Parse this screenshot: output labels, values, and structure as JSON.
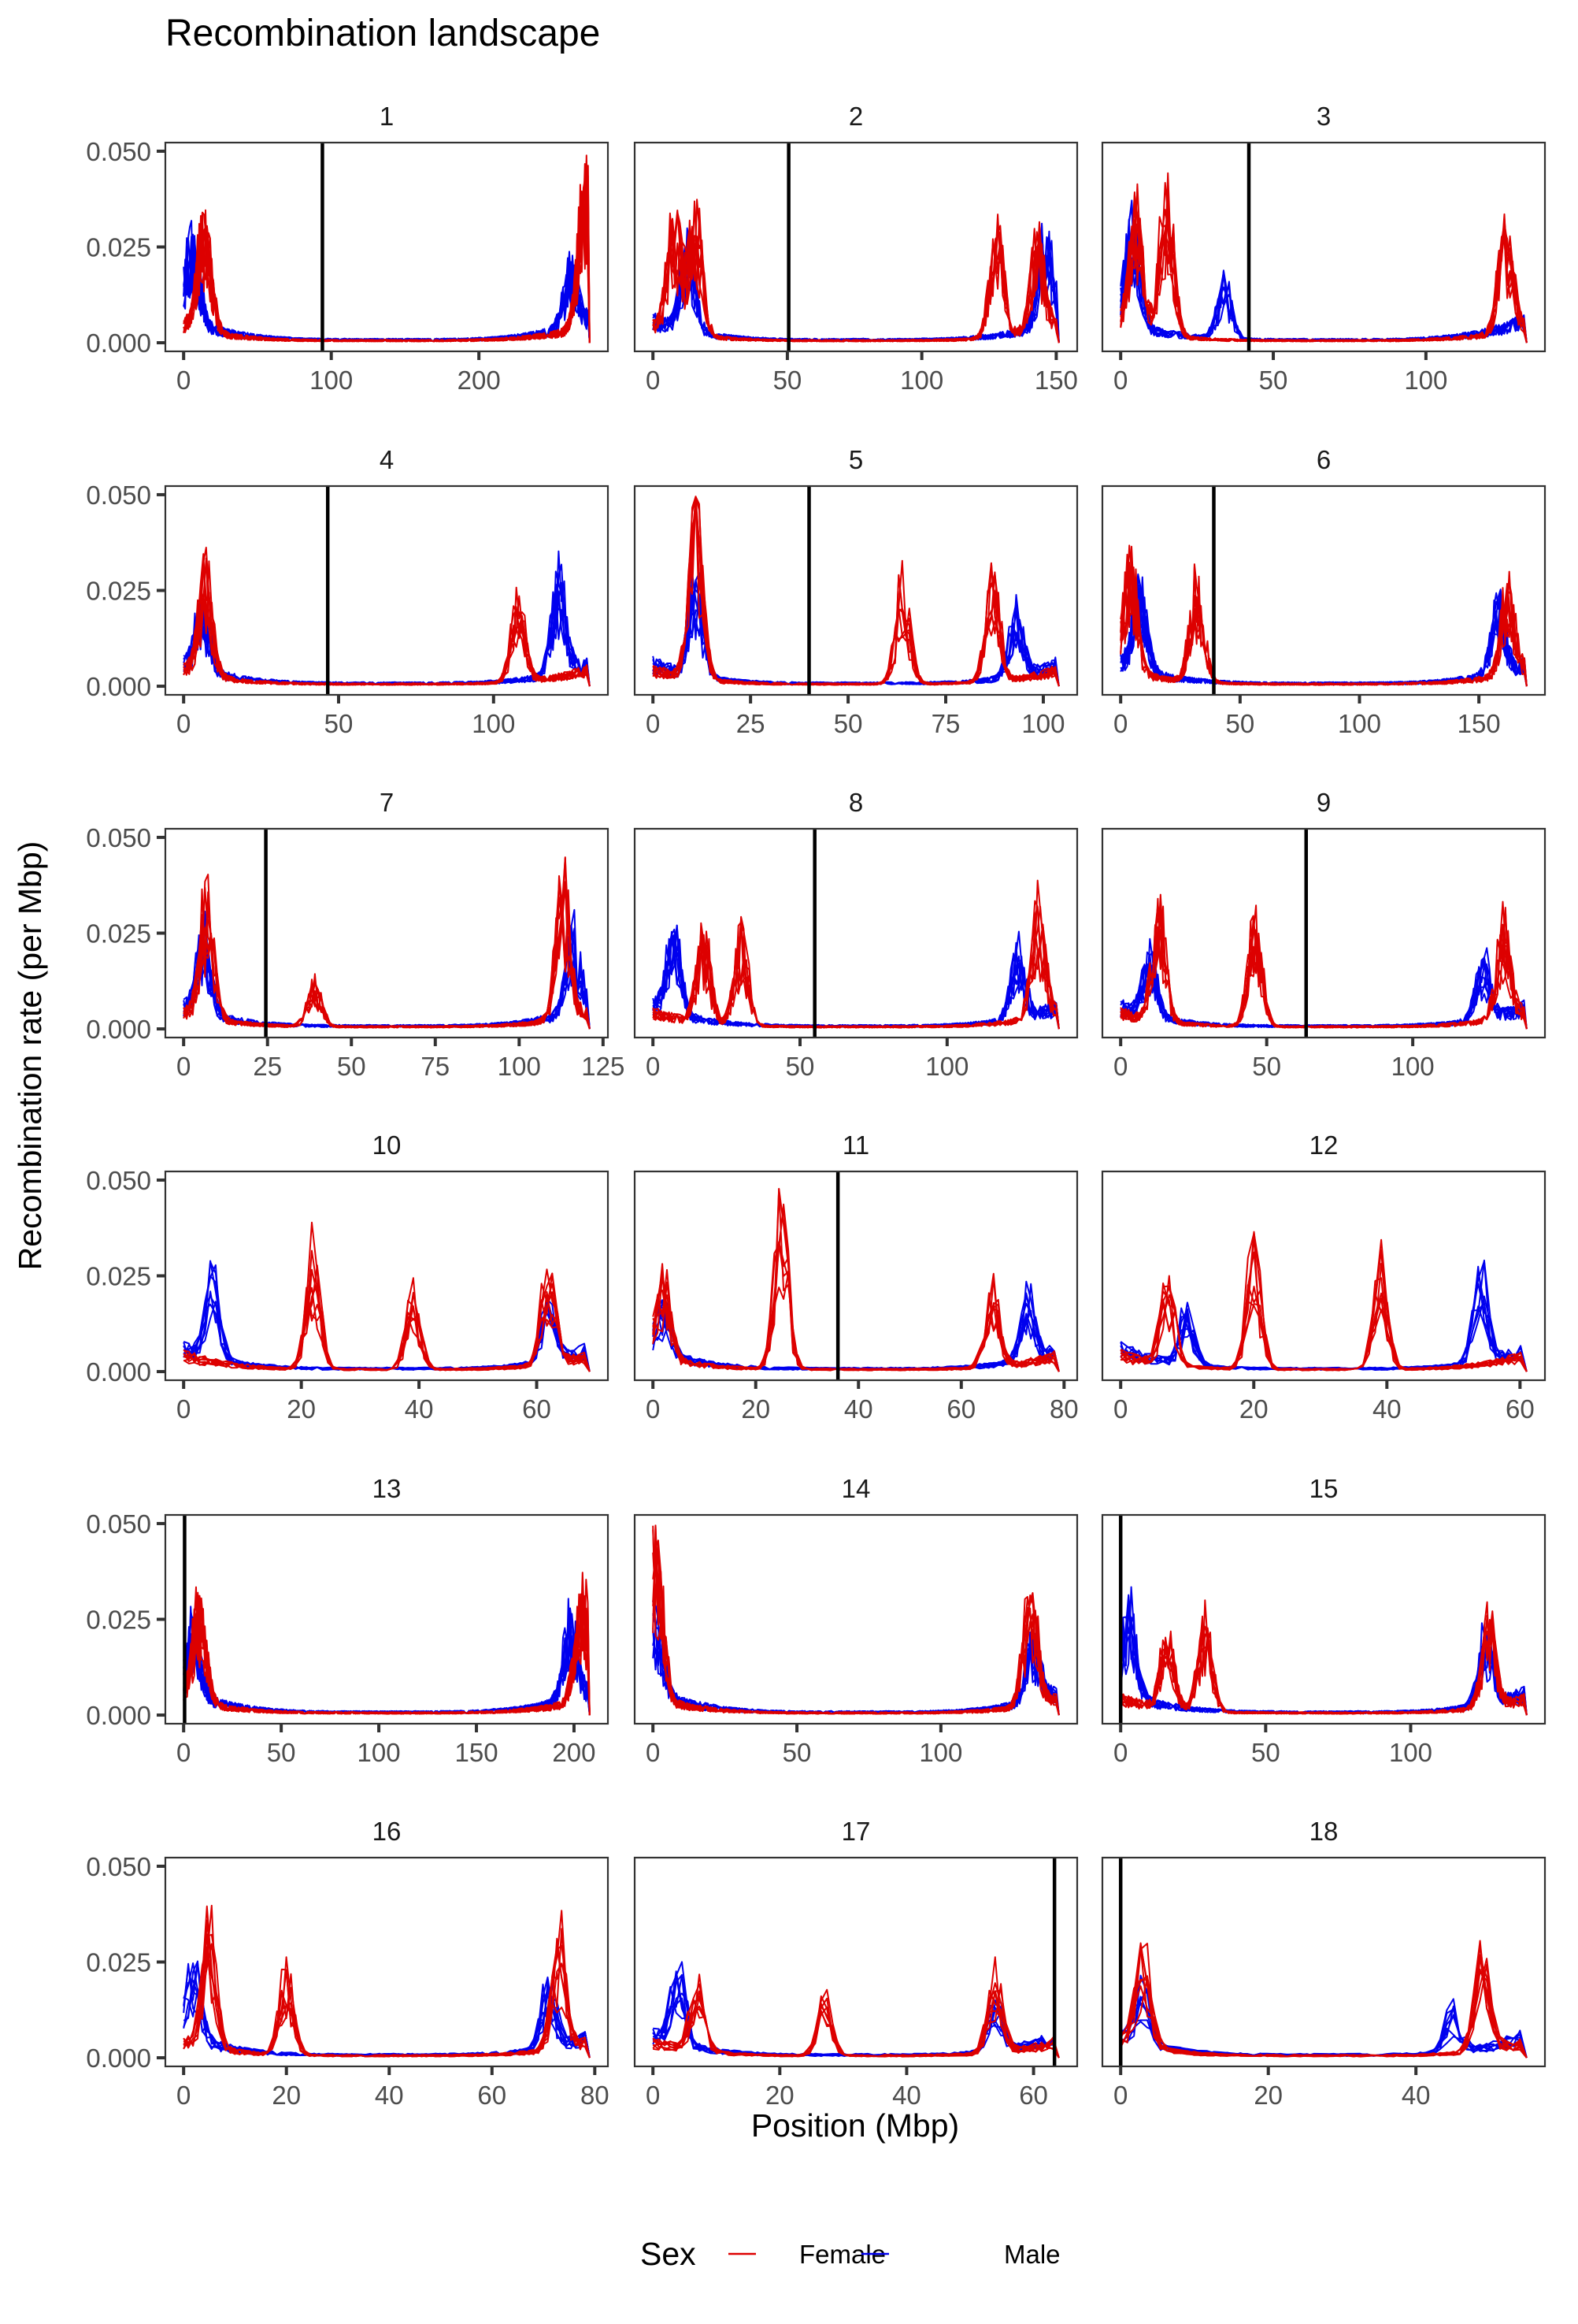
{
  "chart_data": {
    "type": "line",
    "title": "Recombination landscape",
    "xlabel": "Position (Mbp)",
    "ylabel": "Recombination rate (per Mbp)",
    "ylim": [
      0,
      0.05
    ],
    "yticks": [
      0,
      0.025,
      0.05
    ],
    "ytick_labels": [
      "0.000",
      "0.025",
      "0.050"
    ],
    "grid": false,
    "facet_layout": "3 columns x 6 rows",
    "legend": {
      "title": "Sex",
      "placement": "bottom",
      "entries": [
        {
          "label": "Female",
          "color": "#dd0000"
        },
        {
          "label": "Male",
          "color": "#0000ee"
        }
      ]
    },
    "reference_line": "centromere (vertical black line)",
    "panels": [
      {
        "label": "1",
        "length": 275,
        "centromere": 94,
        "xticks": [
          0,
          100,
          200
        ],
        "female_peaks": [
          [
            14,
            0.031
          ],
          [
            272,
            0.043
          ]
        ],
        "male_peaks": [
          [
            6,
            0.024
          ],
          [
            262,
            0.016
          ]
        ]
      },
      {
        "label": "2",
        "length": 151,
        "centromere": 50.5,
        "xticks": [
          0,
          50,
          100,
          150
        ],
        "female_peaks": [
          [
            8,
            0.033
          ],
          [
            16,
            0.033
          ],
          [
            128,
            0.03
          ],
          [
            143,
            0.026
          ]
        ],
        "male_peaks": [
          [
            13,
            0.026
          ],
          [
            146,
            0.025
          ]
        ]
      },
      {
        "label": "3",
        "length": 133,
        "centromere": 42,
        "xticks": [
          0,
          50,
          100
        ],
        "female_peaks": [
          [
            5,
            0.034
          ],
          [
            15,
            0.039
          ],
          [
            126,
            0.03
          ]
        ],
        "male_peaks": [
          [
            4,
            0.028
          ],
          [
            34,
            0.016
          ]
        ]
      },
      {
        "label": "4",
        "length": 131,
        "centromere": 46.5,
        "xticks": [
          0,
          50,
          100
        ],
        "female_peaks": [
          [
            7,
            0.028
          ],
          [
            108,
            0.023
          ]
        ],
        "male_peaks": [
          [
            6,
            0.017
          ],
          [
            121,
            0.027
          ]
        ]
      },
      {
        "label": "5",
        "length": 104,
        "centromere": 40,
        "xticks": [
          0,
          25,
          50,
          75,
          100
        ],
        "female_peaks": [
          [
            11,
            0.049
          ],
          [
            64,
            0.03
          ],
          [
            87,
            0.03
          ]
        ],
        "male_peaks": [
          [
            11,
            0.029
          ],
          [
            93,
            0.019
          ]
        ]
      },
      {
        "label": "6",
        "length": 170,
        "centromere": 39,
        "xticks": [
          0,
          50,
          100,
          150
        ],
        "female_peaks": [
          [
            4,
            0.029
          ],
          [
            32,
            0.029
          ],
          [
            162,
            0.023
          ]
        ],
        "male_peaks": [
          [
            8,
            0.023
          ],
          [
            158,
            0.019
          ]
        ]
      },
      {
        "label": "7",
        "length": 121,
        "centromere": 24.5,
        "xticks": [
          0,
          25,
          50,
          75,
          100,
          125
        ],
        "female_peaks": [
          [
            7,
            0.034
          ],
          [
            39,
            0.012
          ],
          [
            113,
            0.038
          ]
        ],
        "male_peaks": [
          [
            6,
            0.022
          ],
          [
            116,
            0.022
          ]
        ]
      },
      {
        "label": "8",
        "length": 138,
        "centromere": 55,
        "xticks": [
          0,
          50,
          100
        ],
        "female_peaks": [
          [
            17,
            0.025
          ],
          [
            30,
            0.024
          ],
          [
            131,
            0.03
          ]
        ],
        "male_peaks": [
          [
            7,
            0.024
          ],
          [
            124,
            0.018
          ]
        ]
      },
      {
        "label": "9",
        "length": 139,
        "centromere": 63.5,
        "xticks": [
          0,
          50,
          100
        ],
        "female_peaks": [
          [
            13,
            0.03
          ],
          [
            46,
            0.029
          ],
          [
            131,
            0.026
          ]
        ],
        "male_peaks": [
          [
            10,
            0.017
          ],
          [
            124,
            0.017
          ]
        ]
      },
      {
        "label": "10",
        "length": 69,
        "centromere": null,
        "xticks": [
          0,
          20,
          40,
          60
        ],
        "female_peaks": [
          [
            22,
            0.034
          ],
          [
            39,
            0.021
          ],
          [
            62,
            0.03
          ]
        ],
        "male_peaks": [
          [
            5,
            0.025
          ],
          [
            62,
            0.018
          ]
        ]
      },
      {
        "label": "11",
        "length": 79,
        "centromere": 36,
        "xticks": [
          0,
          20,
          40,
          60,
          80
        ],
        "female_peaks": [
          [
            2,
            0.023
          ],
          [
            25,
            0.045
          ],
          [
            66,
            0.023
          ]
        ],
        "male_peaks": [
          [
            2,
            0.015
          ],
          [
            73,
            0.018
          ]
        ]
      },
      {
        "label": "12",
        "length": 61,
        "centromere": null,
        "xticks": [
          0,
          20,
          40,
          60
        ],
        "female_peaks": [
          [
            7,
            0.024
          ],
          [
            20,
            0.034
          ],
          [
            39,
            0.031
          ]
        ],
        "male_peaks": [
          [
            10,
            0.017
          ],
          [
            54,
            0.027
          ]
        ]
      },
      {
        "label": "13",
        "length": 208,
        "centromere": 0.5,
        "xticks": [
          0,
          50,
          100,
          150,
          200
        ],
        "female_peaks": [
          [
            8,
            0.029
          ],
          [
            204,
            0.03
          ]
        ],
        "male_peaks": [
          [
            5,
            0.02
          ],
          [
            198,
            0.021
          ]
        ]
      },
      {
        "label": "14",
        "length": 141,
        "centromere": null,
        "xticks": [
          0,
          50,
          100
        ],
        "female_peaks": [
          [
            1,
            0.047
          ],
          [
            131,
            0.034
          ]
        ],
        "male_peaks": [
          [
            1,
            0.022
          ],
          [
            132,
            0.017
          ]
        ]
      },
      {
        "label": "15",
        "length": 140,
        "centromere": 0,
        "xticks": [
          0,
          50,
          100
        ],
        "female_peaks": [
          [
            16,
            0.02
          ],
          [
            29,
            0.025
          ],
          [
            127,
            0.025
          ]
        ],
        "male_peaks": [
          [
            3,
            0.024
          ],
          [
            126,
            0.02
          ]
        ]
      },
      {
        "label": "16",
        "length": 79,
        "centromere": null,
        "xticks": [
          0,
          20,
          40,
          60,
          80
        ],
        "female_peaks": [
          [
            5,
            0.033
          ],
          [
            20,
            0.023
          ],
          [
            73,
            0.031
          ]
        ],
        "male_peaks": [
          [
            2,
            0.021
          ],
          [
            71,
            0.019
          ]
        ]
      },
      {
        "label": "17",
        "length": 64,
        "centromere": 63.3,
        "xticks": [
          0,
          20,
          40,
          60
        ],
        "female_peaks": [
          [
            7,
            0.02
          ],
          [
            27,
            0.018
          ],
          [
            54,
            0.024
          ]
        ],
        "male_peaks": [
          [
            4,
            0.022
          ],
          [
            54,
            0.015
          ]
        ]
      },
      {
        "label": "18",
        "length": 55,
        "centromere": 0,
        "xticks": [
          0,
          20,
          40
        ],
        "female_peaks": [
          [
            3,
            0.027
          ],
          [
            49,
            0.026
          ]
        ],
        "male_peaks": [
          [
            3,
            0.015
          ],
          [
            45,
            0.012
          ]
        ]
      }
    ]
  }
}
